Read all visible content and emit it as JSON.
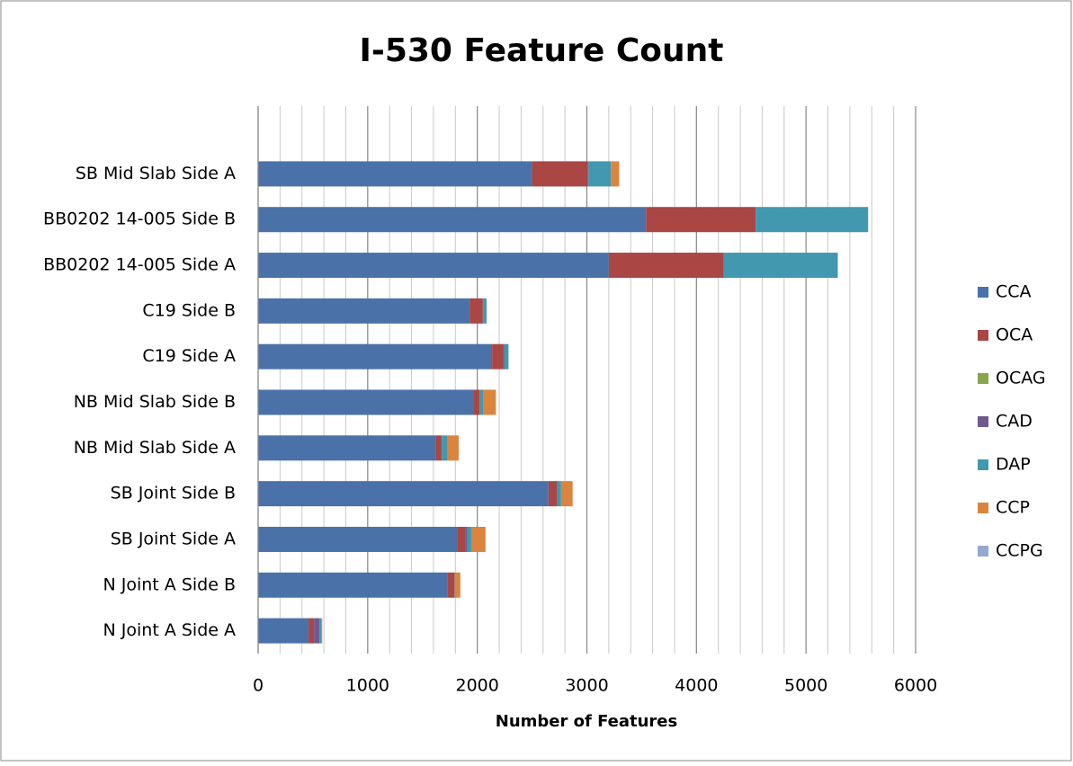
{
  "chart_data": {
    "type": "stacked-barh",
    "title": "I-530 Feature Count",
    "x_label": "Number of Features",
    "categories": [
      "SB Mid Slab Side A",
      "BB0202 14-005 Side B",
      "BB0202 14-005 Side A",
      "C19 Side B",
      "C19 Side A",
      "NB Mid Slab Side B",
      "NB Mid Slab Side A",
      "SB Joint Side B",
      "SB Joint Side A",
      "N Joint A Side B",
      "N Joint A Side A"
    ],
    "series": [
      {
        "name": "CCA",
        "color": "#4a72a8",
        "values": [
          2500,
          3540,
          3200,
          1930,
          2135,
          1970,
          1620,
          2650,
          1815,
          1725,
          460
        ]
      },
      {
        "name": "OCA",
        "color": "#aa4643",
        "values": [
          510,
          1000,
          1050,
          120,
          105,
          50,
          50,
          75,
          80,
          65,
          50
        ]
      },
      {
        "name": "OCAG",
        "color": "#89a54e",
        "values": [
          0,
          0,
          0,
          0,
          0,
          0,
          0,
          0,
          0,
          0,
          0
        ]
      },
      {
        "name": "CAD",
        "color": "#71588f",
        "values": [
          5,
          0,
          0,
          5,
          5,
          5,
          5,
          5,
          15,
          5,
          50
        ]
      },
      {
        "name": "DAP",
        "color": "#4198af",
        "values": [
          205,
          1027,
          1040,
          30,
          40,
          30,
          55,
          35,
          35,
          0,
          15
        ]
      },
      {
        "name": "CCP",
        "color": "#db843d",
        "values": [
          75,
          0,
          0,
          0,
          0,
          115,
          100,
          105,
          130,
          50,
          10
        ]
      },
      {
        "name": "CCPG",
        "color": "#93a9cf",
        "values": [
          0,
          0,
          0,
          0,
          0,
          0,
          0,
          0,
          0,
          0,
          0
        ]
      }
    ],
    "xlim": [
      0,
      6000
    ],
    "xticks": [
      0,
      1000,
      2000,
      3000,
      4000,
      5000,
      6000
    ],
    "minor_grid_step": 200,
    "grid": true,
    "legend": "right"
  }
}
